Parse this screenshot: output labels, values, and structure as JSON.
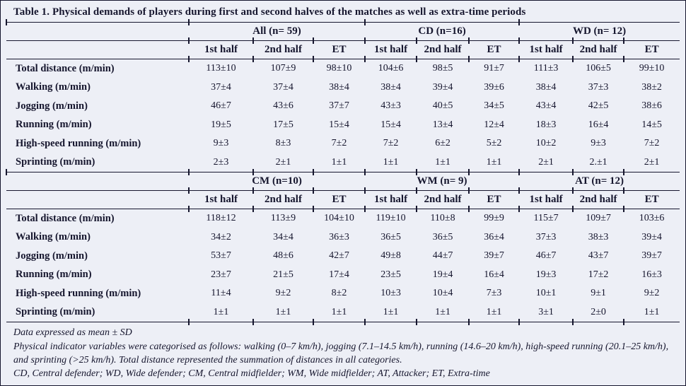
{
  "title": "Table 1. Physical demands of players during first and second halves of the matches as well as extra-time periods",
  "colors": {
    "background": "#edeff6",
    "text": "#16162e",
    "rule": "#16162e"
  },
  "table": {
    "period_headers": [
      "1st half",
      "2nd half",
      "ET"
    ],
    "sections": [
      {
        "groups": [
          "All (n= 59)",
          "CD (n=16)",
          "WD (n= 12)"
        ],
        "rows": [
          {
            "label": "Total distance (m/min)",
            "values": [
              "113±10",
              "107±9",
              "98±10",
              "104±6",
              "98±5",
              "91±7",
              "111±3",
              "106±5",
              "99±10"
            ]
          },
          {
            "label": "Walking (m/min)",
            "values": [
              "37±4",
              "37±4",
              "38±4",
              "38±4",
              "39±4",
              "39±6",
              "38±4",
              "37±3",
              "38±2"
            ]
          },
          {
            "label": "Jogging (m/min)",
            "values": [
              "46±7",
              "43±6",
              "37±7",
              "43±3",
              "40±5",
              "34±5",
              "43±4",
              "42±5",
              "38±6"
            ]
          },
          {
            "label": "Running (m/min)",
            "values": [
              "19±5",
              "17±5",
              "15±4",
              "15±4",
              "13±4",
              "12±4",
              "18±3",
              "16±4",
              "14±5"
            ]
          },
          {
            "label": "High-speed running (m/min)",
            "values": [
              "9±3",
              "8±3",
              "7±2",
              "7±2",
              "6±2",
              "5±2",
              "10±2",
              "9±3",
              "7±2"
            ]
          },
          {
            "label": "Sprinting (m/min)",
            "values": [
              "2±3",
              "2±1",
              "1±1",
              "1±1",
              "1±1",
              "1±1",
              "2±1",
              "2.±1",
              "2±1"
            ]
          }
        ]
      },
      {
        "groups": [
          "CM (n=10)",
          "WM (n= 9)",
          "AT (n= 12)"
        ],
        "rows": [
          {
            "label": "Total distance (m/min)",
            "values": [
              "118±12",
              "113±9",
              "104±10",
              "119±10",
              "110±8",
              "99±9",
              "115±7",
              "109±7",
              "103±6"
            ]
          },
          {
            "label": "Walking (m/min)",
            "values": [
              "34±2",
              "34±4",
              "36±3",
              "36±5",
              "36±5",
              "36±4",
              "37±3",
              "38±3",
              "39±4"
            ]
          },
          {
            "label": "Jogging (m/min)",
            "values": [
              "53±7",
              "48±6",
              "42±7",
              "49±8",
              "44±7",
              "39±7",
              "46±7",
              "43±7",
              "39±7"
            ]
          },
          {
            "label": "Running (m/min)",
            "values": [
              "23±7",
              "21±5",
              "17±4",
              "23±5",
              "19±4",
              "16±4",
              "19±3",
              "17±2",
              "16±3"
            ]
          },
          {
            "label": "High-speed running (m/min)",
            "values": [
              "11±4",
              "9±2",
              "8±2",
              "10±3",
              "10±4",
              "7±3",
              "10±1",
              "9±1",
              "9±2"
            ]
          },
          {
            "label": "Sprinting (m/min)",
            "values": [
              "1±1",
              "1±1",
              "1±1",
              "1±1",
              "1±1",
              "1±1",
              "3±1",
              "2±0",
              "1±1"
            ]
          }
        ]
      }
    ]
  },
  "notes": [
    "Data expressed as mean ± SD",
    "Physical indicator variables were categorised as follows: walking (0–7 km/h), jogging (7.1–14.5 km/h), running (14.6–20 km/h), high-speed running (20.1–25 km/h), and sprinting (>25 km/h). Total distance represented the summation of distances in all categories.",
    "CD, Central defender; WD, Wide defender; CM, Central midfielder; WM, Wide midfielder; AT, Attacker; ET, Extra-time"
  ]
}
